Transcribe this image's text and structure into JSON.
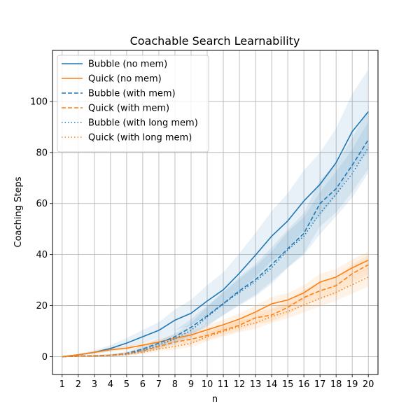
{
  "chart_data": {
    "type": "line",
    "title": "Coachable Search Learnability",
    "xlabel": "n",
    "ylabel": "Coaching Steps",
    "x": [
      1,
      2,
      3,
      4,
      5,
      6,
      7,
      8,
      9,
      10,
      11,
      12,
      13,
      14,
      15,
      16,
      17,
      18,
      19,
      20
    ],
    "xlim": [
      0.4,
      20.6
    ],
    "ylim": [
      -7,
      120
    ],
    "yticks": [
      0,
      20,
      40,
      60,
      80,
      100
    ],
    "grid": true,
    "legend_placement": "top-left",
    "series": [
      {
        "name": "Bubble (no mem)",
        "color": "#1f77b4",
        "linestyle": "solid",
        "values": [
          0,
          0.7,
          1.7,
          3.2,
          5.3,
          7.8,
          10.3,
          14.3,
          17.0,
          21.8,
          26.2,
          32.7,
          39.8,
          47.2,
          53.2,
          61.0,
          67.5,
          76.0,
          88.2,
          96.0
        ],
        "lower": [
          0,
          0.3,
          1.0,
          2.0,
          3.5,
          5.3,
          7.3,
          10.3,
          12.3,
          16.3,
          20.0,
          25.5,
          31.3,
          37.5,
          42.5,
          49.5,
          55.0,
          63.0,
          73.5,
          80.0
        ],
        "upper": [
          0,
          1.1,
          2.5,
          4.5,
          7.3,
          10.5,
          13.5,
          18.5,
          22.3,
          28.0,
          33.0,
          40.5,
          48.5,
          57.0,
          64.0,
          73.0,
          80.0,
          89.5,
          103.0,
          112.5
        ]
      },
      {
        "name": "Quick (no mem)",
        "color": "#ff7f0e",
        "linestyle": "solid",
        "values": [
          0,
          0.7,
          1.7,
          2.7,
          3.3,
          4.5,
          5.7,
          7.2,
          8.5,
          10.5,
          12.5,
          14.7,
          17.5,
          20.7,
          22.2,
          25.0,
          29.2,
          31.2,
          34.8,
          37.8
        ],
        "lower": [
          0,
          0.4,
          1.2,
          2.0,
          2.5,
          3.5,
          4.5,
          5.8,
          7.0,
          8.7,
          10.5,
          12.5,
          15.0,
          18.0,
          19.5,
          22.0,
          26.0,
          28.0,
          31.5,
          34.5
        ],
        "upper": [
          0,
          1.0,
          2.2,
          3.4,
          4.1,
          5.5,
          6.9,
          8.6,
          10.0,
          12.3,
          14.5,
          16.9,
          20.0,
          23.4,
          24.9,
          28.0,
          32.4,
          34.4,
          38.1,
          41.1
        ]
      },
      {
        "name": "Bubble (with mem)",
        "color": "#1f77b4",
        "linestyle": "dashed",
        "values": [
          0,
          0.2,
          0.3,
          0.5,
          1.3,
          3.0,
          5.3,
          7.8,
          11.5,
          16.0,
          20.8,
          25.8,
          30.2,
          36.0,
          42.3,
          48.3,
          60.0,
          65.8,
          75.0,
          85.0
        ],
        "lower": [
          0,
          0.0,
          0.0,
          0.2,
          0.6,
          1.8,
          3.5,
          5.5,
          8.5,
          12.3,
          16.3,
          20.5,
          24.3,
          29.5,
          35.0,
          40.5,
          51.0,
          56.5,
          64.5,
          73.5
        ],
        "upper": [
          0,
          0.4,
          0.7,
          1.0,
          2.1,
          4.4,
          7.3,
          10.3,
          14.7,
          20.0,
          25.5,
          31.3,
          36.3,
          42.8,
          49.8,
          56.3,
          69.2,
          75.3,
          85.8,
          96.8
        ]
      },
      {
        "name": "Quick (with mem)",
        "color": "#ff7f0e",
        "linestyle": "dashed",
        "values": [
          0,
          0.2,
          0.3,
          0.5,
          1.2,
          2.3,
          4.0,
          5.7,
          6.8,
          8.3,
          10.3,
          12.3,
          15.2,
          16.3,
          19.3,
          23.2,
          25.8,
          27.8,
          32.5,
          36.0
        ],
        "lower": [
          0,
          0.0,
          0.0,
          0.2,
          0.7,
          1.5,
          2.9,
          4.4,
          5.3,
          6.6,
          8.4,
          10.2,
          12.8,
          13.8,
          16.6,
          20.2,
          22.6,
          24.5,
          28.9,
          32.2
        ],
        "upper": [
          0,
          0.4,
          0.7,
          0.9,
          1.7,
          3.1,
          5.1,
          7.0,
          8.3,
          10.0,
          12.2,
          14.4,
          17.6,
          18.8,
          22.0,
          26.2,
          29.0,
          31.1,
          36.1,
          39.8
        ]
      },
      {
        "name": "Bubble (with long mem)",
        "color": "#1f77b4",
        "linestyle": "dotted",
        "values": [
          0,
          0.2,
          0.3,
          0.5,
          1.0,
          2.5,
          4.5,
          7.0,
          10.3,
          15.5,
          20.7,
          25.2,
          29.5,
          34.8,
          41.8,
          47.2,
          56.2,
          63.7,
          71.7,
          82.0
        ],
        "lower": [
          0,
          0.0,
          0.0,
          0.2,
          0.5,
          1.5,
          3.0,
          5.0,
          7.5,
          11.8,
          16.2,
          20.0,
          23.7,
          28.5,
          34.8,
          39.8,
          48.0,
          55.0,
          62.3,
          72.0
        ],
        "upper": [
          0,
          0.4,
          0.6,
          0.9,
          1.6,
          3.6,
          6.1,
          9.1,
          13.2,
          19.4,
          25.3,
          30.5,
          35.4,
          41.2,
          48.9,
          54.7,
          64.5,
          72.5,
          81.2,
          92.2
        ]
      },
      {
        "name": "Quick (with long mem)",
        "color": "#ff7f0e",
        "linestyle": "dotted",
        "values": [
          0,
          0.2,
          0.3,
          0.5,
          0.8,
          1.7,
          3.0,
          4.0,
          5.2,
          7.8,
          9.8,
          11.8,
          13.2,
          15.7,
          17.7,
          20.2,
          22.8,
          25.2,
          28.2,
          31.2
        ],
        "lower": [
          0,
          0.0,
          0.0,
          0.2,
          0.4,
          1.0,
          2.0,
          2.8,
          3.8,
          6.0,
          7.8,
          9.6,
          10.9,
          13.2,
          15.0,
          17.3,
          19.7,
          21.9,
          24.7,
          27.5
        ],
        "upper": [
          0,
          0.4,
          0.6,
          0.8,
          1.2,
          2.4,
          4.0,
          5.2,
          6.6,
          9.6,
          11.8,
          14.0,
          15.5,
          18.2,
          20.4,
          23.1,
          25.9,
          28.5,
          31.7,
          34.9
        ]
      }
    ]
  }
}
